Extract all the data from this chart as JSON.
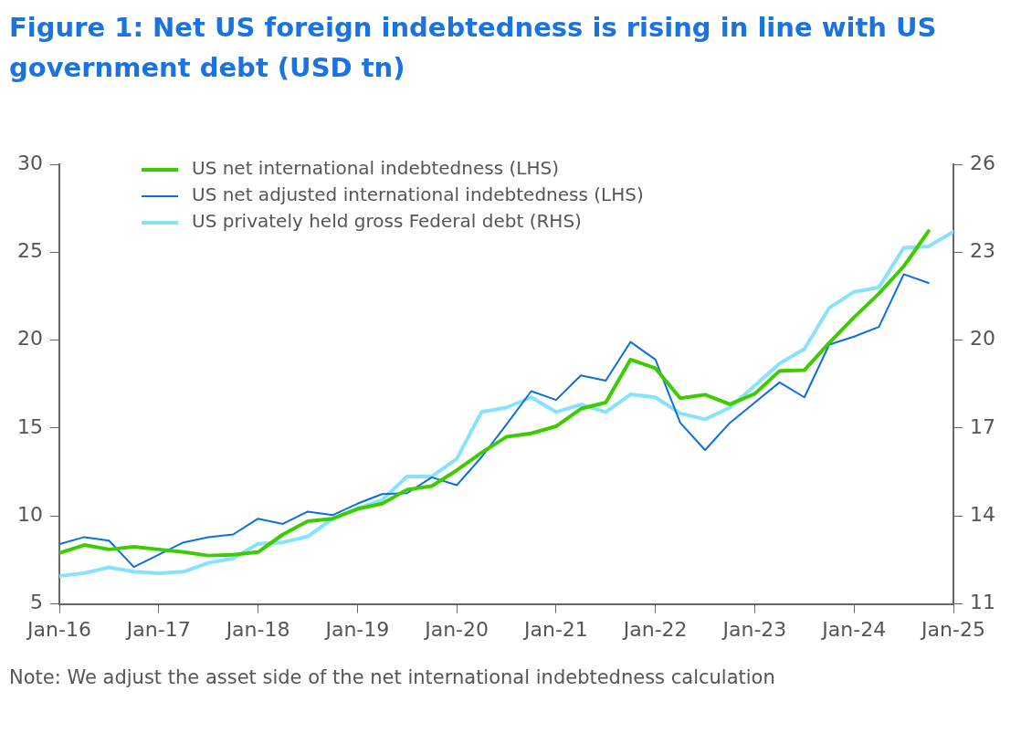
{
  "chart_data": {
    "type": "line",
    "title": "Figure 1: Net US foreign indebtedness is rising in line with US government debt (USD tn)",
    "annotations": [
      "Note: We adjust the asset side of the net international indebtedness calculation"
    ],
    "x": [
      "2016-01",
      "2016-04",
      "2016-07",
      "2016-10",
      "2017-01",
      "2017-04",
      "2017-07",
      "2017-10",
      "2018-01",
      "2018-04",
      "2018-07",
      "2018-10",
      "2019-01",
      "2019-04",
      "2019-07",
      "2019-10",
      "2020-01",
      "2020-04",
      "2020-07",
      "2020-10",
      "2021-01",
      "2021-04",
      "2021-07",
      "2021-10",
      "2022-01",
      "2022-04",
      "2022-07",
      "2022-10",
      "2023-01",
      "2023-04",
      "2023-07",
      "2023-10",
      "2024-01",
      "2024-04",
      "2024-07",
      "2024-10",
      "2025-01"
    ],
    "series": [
      {
        "name": "US net international indebtedness (LHS)",
        "color": "#3ccc00",
        "values": [
          7.9,
          8.35,
          8.1,
          8.25,
          8.1,
          7.95,
          7.75,
          7.8,
          7.95,
          8.95,
          9.7,
          9.85,
          10.4,
          10.7,
          11.5,
          11.7,
          12.6,
          13.6,
          14.5,
          14.7,
          15.1,
          16.1,
          16.45,
          18.9,
          18.4,
          16.7,
          16.9,
          16.35,
          16.95,
          18.25,
          18.3,
          19.85,
          21.3,
          22.65,
          24.2,
          26.2,
          null
        ]
      },
      {
        "name": "US net adjusted international indebtedness (LHS)",
        "color": "#0a6fe0",
        "values": [
          8.4,
          8.8,
          8.6,
          7.1,
          7.8,
          8.5,
          8.8,
          8.95,
          9.85,
          9.55,
          10.25,
          10.05,
          10.7,
          11.25,
          11.3,
          12.2,
          11.75,
          13.35,
          15.2,
          17.1,
          16.6,
          18.0,
          17.7,
          19.9,
          18.9,
          15.3,
          13.75,
          15.3,
          16.45,
          17.6,
          16.75,
          19.75,
          20.2,
          20.75,
          23.75,
          23.25,
          null
        ]
      },
      {
        "name": "US privately held gross Federal debt (RHS)",
        "color": "#88e2ff",
        "axis": "y2",
        "values": [
          11.95,
          12.05,
          12.25,
          12.1,
          12.05,
          12.1,
          12.4,
          12.55,
          13.05,
          13.1,
          13.3,
          13.9,
          14.25,
          14.55,
          15.35,
          15.35,
          15.95,
          17.55,
          17.7,
          18.05,
          17.55,
          17.8,
          17.55,
          18.15,
          18.05,
          17.5,
          17.3,
          17.7,
          18.45,
          19.2,
          19.7,
          21.1,
          21.65,
          21.8,
          23.15,
          23.2,
          23.7
        ]
      }
    ],
    "xlim": [
      "2016-01",
      "2025-01"
    ],
    "xticks": [
      {
        "value": "2016-01",
        "label": "Jan-16"
      },
      {
        "value": "2017-01",
        "label": "Jan-17"
      },
      {
        "value": "2018-01",
        "label": "Jan-18"
      },
      {
        "value": "2019-01",
        "label": "Jan-19"
      },
      {
        "value": "2020-01",
        "label": "Jan-20"
      },
      {
        "value": "2021-01",
        "label": "Jan-21"
      },
      {
        "value": "2022-01",
        "label": "Jan-22"
      },
      {
        "value": "2023-01",
        "label": "Jan-23"
      },
      {
        "value": "2024-01",
        "label": "Jan-24"
      },
      {
        "value": "2025-01",
        "label": "Jan-25"
      }
    ],
    "ylim": [
      5,
      30
    ],
    "yticks": [
      5,
      10,
      15,
      20,
      25,
      30
    ],
    "y2lim": [
      11,
      26
    ],
    "y2ticks": [
      11,
      14,
      17,
      20,
      23,
      26
    ],
    "legend": "top left",
    "grid": false,
    "marker": "none",
    "line_style": "solid"
  }
}
